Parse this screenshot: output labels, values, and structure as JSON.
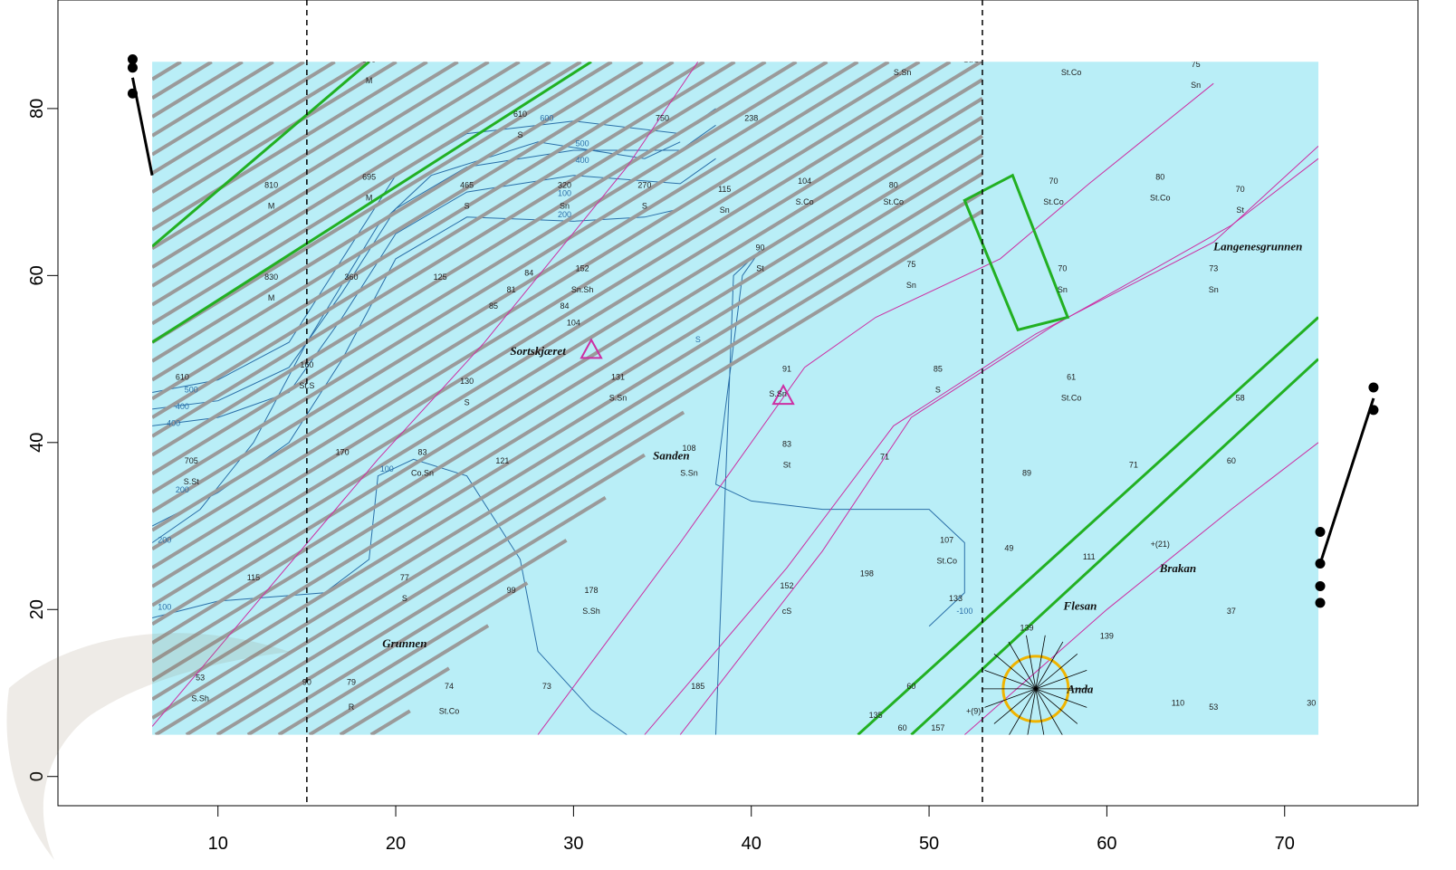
{
  "chart_data": {
    "type": "scatter",
    "background": "nautical chart image",
    "x_axis": {
      "ticks": [
        10,
        20,
        30,
        40,
        50,
        60,
        70
      ],
      "range": [
        1,
        77.5
      ]
    },
    "y_axis": {
      "ticks": [
        0,
        20,
        40,
        60,
        80
      ],
      "range": [
        -3.5,
        93
      ]
    },
    "image_extent": {
      "x": [
        6.3,
        71.9
      ],
      "y": [
        5,
        85.6
      ]
    },
    "vertical_dashed_lines": [
      15,
      53
    ],
    "series": [
      {
        "points": [
          [
            5.2,
            85.9
          ],
          [
            5.2,
            84.9
          ],
          [
            5.2,
            81.8
          ],
          [
            72,
            29.3
          ],
          [
            72,
            25.5
          ],
          [
            72,
            22.8
          ],
          [
            72,
            20.8
          ],
          [
            75,
            46.6
          ],
          [
            75,
            43.9
          ]
        ]
      }
    ],
    "segments": [
      {
        "from": [
          5.2,
          83.7
        ],
        "to": [
          6.3,
          72
        ]
      },
      {
        "from": [
          72,
          25.5
        ],
        "to": [
          75,
          45.3
        ]
      }
    ],
    "colors": {
      "sea": "#b9eef7",
      "tracks": "#9a9a9a",
      "green_lines": "#22b022",
      "magenta_lines": "#cc2fa3",
      "contours": "#2a6fa8",
      "points": "#000000"
    }
  },
  "map": {
    "place_names": [
      {
        "text": "Sortskjæret",
        "x": 28,
        "y": 50.5
      },
      {
        "text": "Sanden",
        "x": 35.5,
        "y": 38
      },
      {
        "text": "Grunnen",
        "x": 20.5,
        "y": 15.5
      },
      {
        "text": "Langenesgrunnen",
        "x": 68.5,
        "y": 63
      },
      {
        "text": "Flesan",
        "x": 58.5,
        "y": 20
      },
      {
        "text": "Brakan",
        "x": 64,
        "y": 24.5
      },
      {
        "text": "Anda",
        "x": 58.5,
        "y": 10
      }
    ],
    "soundings": [
      {
        "text": "810",
        "x": 13,
        "y": 70.5
      },
      {
        "text": "M",
        "x": 13,
        "y": 68
      },
      {
        "text": "890",
        "x": 18.5,
        "y": 85.5
      },
      {
        "text": "M",
        "x": 18.5,
        "y": 83
      },
      {
        "text": "695",
        "x": 18.5,
        "y": 71.5
      },
      {
        "text": "M",
        "x": 18.5,
        "y": 69
      },
      {
        "text": "465",
        "x": 24,
        "y": 70.5
      },
      {
        "text": "S",
        "x": 24,
        "y": 68
      },
      {
        "text": "610",
        "x": 27,
        "y": 79
      },
      {
        "text": "S",
        "x": 27,
        "y": 76.5
      },
      {
        "text": "320",
        "x": 29.5,
        "y": 70.5
      },
      {
        "text": "Sn",
        "x": 29.5,
        "y": 68
      },
      {
        "text": "270",
        "x": 34,
        "y": 70.5
      },
      {
        "text": "S",
        "x": 34,
        "y": 68
      },
      {
        "text": "750",
        "x": 35,
        "y": 78.5
      },
      {
        "text": "238",
        "x": 40,
        "y": 78.5
      },
      {
        "text": "115",
        "x": 38.5,
        "y": 70
      },
      {
        "text": "Sn",
        "x": 38.5,
        "y": 67.5
      },
      {
        "text": "104",
        "x": 43,
        "y": 71
      },
      {
        "text": "S.Co",
        "x": 43,
        "y": 68.5
      },
      {
        "text": "80",
        "x": 48,
        "y": 70.5
      },
      {
        "text": "St.Co",
        "x": 48,
        "y": 68.5
      },
      {
        "text": "S.Sn",
        "x": 48.5,
        "y": 84
      },
      {
        "text": "70",
        "x": 57,
        "y": 71
      },
      {
        "text": "St.Co",
        "x": 57,
        "y": 68.5
      },
      {
        "text": "80",
        "x": 63,
        "y": 71.5
      },
      {
        "text": "St.Co",
        "x": 63,
        "y": 69
      },
      {
        "text": "70",
        "x": 67.5,
        "y": 70
      },
      {
        "text": "St",
        "x": 67.5,
        "y": 67.5
      },
      {
        "text": "75",
        "x": 65,
        "y": 85
      },
      {
        "text": "Sn",
        "x": 65,
        "y": 82.5
      },
      {
        "text": "St.Co",
        "x": 58,
        "y": 84
      },
      {
        "text": "St.Co",
        "x": 52.5,
        "y": 85.5
      },
      {
        "text": "830",
        "x": 13,
        "y": 59.5
      },
      {
        "text": "M",
        "x": 13,
        "y": 57
      },
      {
        "text": "360",
        "x": 17.5,
        "y": 59.5
      },
      {
        "text": "125",
        "x": 22.5,
        "y": 59.5
      },
      {
        "text": "84",
        "x": 27.5,
        "y": 60
      },
      {
        "text": "81",
        "x": 26.5,
        "y": 58
      },
      {
        "text": "85",
        "x": 25.5,
        "y": 56
      },
      {
        "text": "152",
        "x": 30.5,
        "y": 60.5
      },
      {
        "text": "Sn.Sh",
        "x": 30.5,
        "y": 58
      },
      {
        "text": "84",
        "x": 29.5,
        "y": 56
      },
      {
        "text": "104",
        "x": 30,
        "y": 54
      },
      {
        "text": "90",
        "x": 40.5,
        "y": 63
      },
      {
        "text": "St",
        "x": 40.5,
        "y": 60.5
      },
      {
        "text": "75",
        "x": 49,
        "y": 61
      },
      {
        "text": "Sn",
        "x": 49,
        "y": 58.5
      },
      {
        "text": "70",
        "x": 57.5,
        "y": 60.5
      },
      {
        "text": "Sn",
        "x": 57.5,
        "y": 58
      },
      {
        "text": "73",
        "x": 66,
        "y": 60.5
      },
      {
        "text": "Sn",
        "x": 66,
        "y": 58
      },
      {
        "text": "160",
        "x": 15,
        "y": 49
      },
      {
        "text": "St.S",
        "x": 15,
        "y": 46.5
      },
      {
        "text": "610",
        "x": 8,
        "y": 47.5
      },
      {
        "text": "130",
        "x": 24,
        "y": 47
      },
      {
        "text": "S",
        "x": 24,
        "y": 44.5
      },
      {
        "text": "131",
        "x": 32.5,
        "y": 47.5
      },
      {
        "text": "S.Sn",
        "x": 32.5,
        "y": 45
      },
      {
        "text": "91",
        "x": 42,
        "y": 48.5
      },
      {
        "text": "S.Sn",
        "x": 41.5,
        "y": 45.5
      },
      {
        "text": "85",
        "x": 50.5,
        "y": 48.5
      },
      {
        "text": "S",
        "x": 50.5,
        "y": 46
      },
      {
        "text": "61",
        "x": 58,
        "y": 47.5
      },
      {
        "text": "St.Co",
        "x": 58,
        "y": 45
      },
      {
        "text": "58",
        "x": 67.5,
        "y": 45
      },
      {
        "text": "705",
        "x": 8.5,
        "y": 37.5
      },
      {
        "text": "S.St",
        "x": 8.5,
        "y": 35
      },
      {
        "text": "170",
        "x": 17,
        "y": 38.5
      },
      {
        "text": "83",
        "x": 21.5,
        "y": 38.5
      },
      {
        "text": "Co.Sn",
        "x": 21.5,
        "y": 36
      },
      {
        "text": "121",
        "x": 26,
        "y": 37.5
      },
      {
        "text": "108",
        "x": 36.5,
        "y": 39
      },
      {
        "text": "S.Sn",
        "x": 36.5,
        "y": 36
      },
      {
        "text": "83",
        "x": 42,
        "y": 39.5
      },
      {
        "text": "St",
        "x": 42,
        "y": 37
      },
      {
        "text": "71",
        "x": 47.5,
        "y": 38
      },
      {
        "text": "89",
        "x": 55.5,
        "y": 36
      },
      {
        "text": "71",
        "x": 61.5,
        "y": 37
      },
      {
        "text": "60",
        "x": 67,
        "y": 37.5
      },
      {
        "text": "107",
        "x": 51,
        "y": 28
      },
      {
        "text": "St.Co",
        "x": 51,
        "y": 25.5
      },
      {
        "text": "49",
        "x": 54.5,
        "y": 27
      },
      {
        "text": "111",
        "x": 59,
        "y": 26
      },
      {
        "text": "+(21)",
        "x": 63,
        "y": 27.5
      },
      {
        "text": "198",
        "x": 46.5,
        "y": 24
      },
      {
        "text": "133",
        "x": 51.5,
        "y": 21
      },
      {
        "text": "115",
        "x": 12,
        "y": 23.5
      },
      {
        "text": "77",
        "x": 20.5,
        "y": 23.5
      },
      {
        "text": "S",
        "x": 20.5,
        "y": 21
      },
      {
        "text": "99",
        "x": 26.5,
        "y": 22
      },
      {
        "text": "178",
        "x": 31,
        "y": 22
      },
      {
        "text": "S.Sh",
        "x": 31,
        "y": 19.5
      },
      {
        "text": "152",
        "x": 42,
        "y": 22.5
      },
      {
        "text": "cS",
        "x": 42,
        "y": 19.5
      },
      {
        "text": "37",
        "x": 67,
        "y": 19.5
      },
      {
        "text": "139",
        "x": 60,
        "y": 16.5
      },
      {
        "text": "139",
        "x": 55.5,
        "y": 17.5
      },
      {
        "text": "53",
        "x": 9,
        "y": 11.5
      },
      {
        "text": "S.Sh",
        "x": 9,
        "y": 9
      },
      {
        "text": "90",
        "x": 15,
        "y": 11
      },
      {
        "text": "79",
        "x": 17.5,
        "y": 11
      },
      {
        "text": "R",
        "x": 17.5,
        "y": 8
      },
      {
        "text": "74",
        "x": 23,
        "y": 10.5
      },
      {
        "text": "St.Co",
        "x": 23,
        "y": 7.5
      },
      {
        "text": "73",
        "x": 28.5,
        "y": 10.5
      },
      {
        "text": "185",
        "x": 37,
        "y": 10.5
      },
      {
        "text": "60",
        "x": 49,
        "y": 10.5
      },
      {
        "text": "135",
        "x": 47,
        "y": 7
      },
      {
        "text": "60",
        "x": 48.5,
        "y": 5.5
      },
      {
        "text": "157",
        "x": 50.5,
        "y": 5.5
      },
      {
        "text": "+(9)",
        "x": 52.5,
        "y": 7.5
      },
      {
        "text": "110",
        "x": 64,
        "y": 8.5
      },
      {
        "text": "53",
        "x": 66,
        "y": 8
      },
      {
        "text": "30",
        "x": 71.5,
        "y": 8.5
      }
    ],
    "contour_labels": [
      {
        "text": "600",
        "x": 28.5,
        "y": 78.5
      },
      {
        "text": "500",
        "x": 30.5,
        "y": 75.5
      },
      {
        "text": "400",
        "x": 30.5,
        "y": 73.5
      },
      {
        "text": "100",
        "x": 29.5,
        "y": 69.5
      },
      {
        "text": "200",
        "x": 29.5,
        "y": 67
      },
      {
        "text": "500",
        "x": 8.5,
        "y": 46
      },
      {
        "text": "400",
        "x": 8,
        "y": 44
      },
      {
        "text": "400",
        "x": 7.5,
        "y": 42
      },
      {
        "text": "200",
        "x": 8,
        "y": 34
      },
      {
        "text": "200",
        "x": 7,
        "y": 28
      },
      {
        "text": "100",
        "x": 7,
        "y": 20
      },
      {
        "text": "100",
        "x": 19.5,
        "y": 36.5
      },
      {
        "text": "S",
        "x": 37,
        "y": 52
      },
      {
        "text": "-100",
        "x": 52,
        "y": 19.5
      }
    ]
  }
}
